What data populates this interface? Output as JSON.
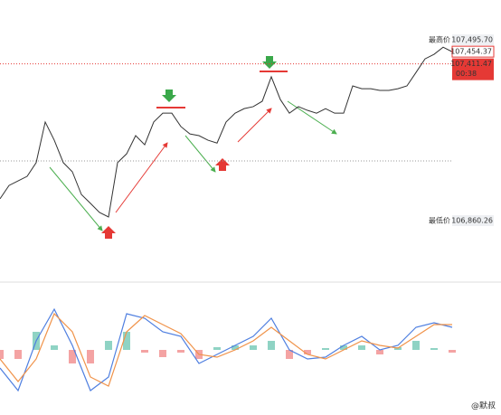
{
  "chart_data": [
    {
      "type": "line",
      "color": "#333333",
      "values": [
        106937,
        106984,
        107000,
        107016,
        107064,
        107207,
        107143,
        107064,
        107032,
        106952,
        106921,
        106889,
        106873,
        107064,
        107095,
        107159,
        107127,
        107207,
        107238,
        107238,
        107191,
        107165,
        107159,
        107143,
        107133,
        107207,
        107238,
        107254,
        107261,
        107280,
        107366,
        107286,
        107238,
        107261,
        107248,
        107238,
        107254,
        107238,
        107238,
        107334,
        107324,
        107324,
        107318,
        107318,
        107324,
        107334,
        107381,
        107429,
        107445,
        107470,
        107454
      ],
      "ylim": [
        106714,
        107636
      ],
      "reference_line": 107070,
      "high": {
        "label": "最高价",
        "value": 107495.7,
        "value_label": "107,495.70"
      },
      "current": {
        "value": 107454.37,
        "label": "107,454.37"
      },
      "last": {
        "value": 107411.47,
        "label": "107,411.47",
        "countdown": "00:38"
      },
      "low": {
        "label": "最低价",
        "value": 106860.26,
        "value_label": "106,860.26"
      }
    },
    {
      "type": "macd",
      "ylim": [
        -60,
        60
      ],
      "positive_color": "#8fd3c4",
      "negative_color": "#f4a3a3",
      "series": [
        {
          "type": "line",
          "color": "#4f7fe0",
          "values": [
            -20,
            -45,
            10,
            45,
            5,
            -45,
            -30,
            40,
            35,
            20,
            15,
            -15,
            -5,
            5,
            15,
            35,
            0,
            -10,
            -8,
            5,
            15,
            0,
            5,
            25,
            30,
            25
          ]
        },
        {
          "type": "line",
          "color": "#f0934a",
          "values": [
            -10,
            -35,
            -10,
            40,
            20,
            -30,
            -40,
            20,
            38,
            28,
            18,
            -5,
            -8,
            0,
            10,
            25,
            10,
            -5,
            -10,
            0,
            10,
            5,
            2,
            15,
            28,
            28
          ]
        },
        {
          "type": "bar",
          "values": [
            -10,
            -10,
            20,
            5,
            -15,
            -15,
            10,
            20,
            -3,
            -8,
            -3,
            -10,
            3,
            5,
            5,
            10,
            -10,
            -5,
            2,
            5,
            5,
            -5,
            3,
            10,
            2,
            -3
          ]
        }
      ]
    }
  ],
  "watermark": "@默叔"
}
